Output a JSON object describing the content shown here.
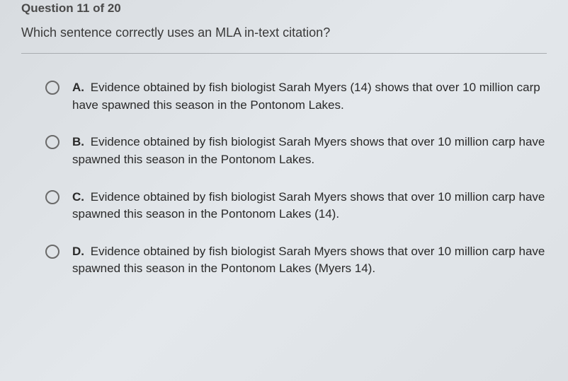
{
  "header": {
    "question_number": "Question 11 of 20"
  },
  "question": {
    "prompt": "Which sentence correctly uses an MLA in-text citation?"
  },
  "options": [
    {
      "letter": "A.",
      "text": "Evidence obtained by fish biologist Sarah Myers (14) shows that over 10 million carp have spawned this season in the Pontonom Lakes."
    },
    {
      "letter": "B.",
      "text": "Evidence obtained by fish biologist Sarah Myers shows that over 10 million carp have spawned this season in the Pontonom Lakes."
    },
    {
      "letter": "C.",
      "text": "Evidence obtained by fish biologist Sarah Myers shows that over 10 million carp have spawned this season in the Pontonom Lakes (14)."
    },
    {
      "letter": "D.",
      "text": "Evidence obtained by fish biologist Sarah Myers shows that over 10 million carp have spawned this season in the Pontonom Lakes (Myers 14)."
    }
  ],
  "colors": {
    "background_light": "#e4e8ec",
    "background_dark": "#d8dce0",
    "text_primary": "#3a3a3a",
    "text_secondary": "#4a4a4a",
    "radio_border": "#6a6a6a",
    "divider": "#a8acb0"
  }
}
